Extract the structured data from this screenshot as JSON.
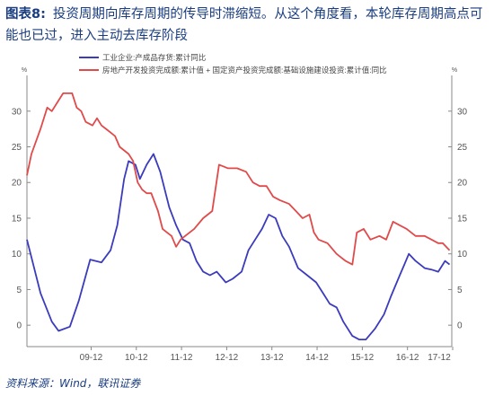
{
  "figure": {
    "label": "图表8:",
    "title": "投资周期向库存周期的传导时滞缩短。从这个角度看，本轮库存周期高点可能也已过，进入主动去库存阶段",
    "source": "资料来源：Wind，联讯证券"
  },
  "chart_data": {
    "type": "line",
    "left_unit": "%",
    "right_unit": "%",
    "ylim": [
      -3,
      34
    ],
    "y_ticks": [
      0,
      5,
      10,
      15,
      20,
      25,
      30
    ],
    "x_range": [
      2008.5,
      2017.9
    ],
    "x_ticks": [
      {
        "label": "09-12",
        "x": 2009.92
      },
      {
        "label": "10-12",
        "x": 2010.92
      },
      {
        "label": "11-12",
        "x": 2011.92
      },
      {
        "label": "12-12",
        "x": 2012.92
      },
      {
        "label": "13-12",
        "x": 2013.92
      },
      {
        "label": "14-12",
        "x": 2014.92
      },
      {
        "label": "15-12",
        "x": 2015.92
      },
      {
        "label": "16-12",
        "x": 2016.92
      },
      {
        "label": "17-12",
        "x": 2017.92
      }
    ],
    "legend": "top-left",
    "series": [
      {
        "name": "工业企业:产成品存货:累计同比",
        "color": "#3b3bbd",
        "points": [
          [
            2008.5,
            12.0
          ],
          [
            2008.8,
            4.5
          ],
          [
            2009.05,
            0.5
          ],
          [
            2009.2,
            -0.8
          ],
          [
            2009.45,
            -0.2
          ],
          [
            2009.65,
            3.5
          ],
          [
            2009.9,
            9.2
          ],
          [
            2010.15,
            8.8
          ],
          [
            2010.35,
            10.5
          ],
          [
            2010.5,
            14.0
          ],
          [
            2010.65,
            20.5
          ],
          [
            2010.75,
            23.0
          ],
          [
            2010.9,
            22.5
          ],
          [
            2011.0,
            20.5
          ],
          [
            2011.15,
            22.5
          ],
          [
            2011.3,
            24.0
          ],
          [
            2011.45,
            21.5
          ],
          [
            2011.65,
            16.5
          ],
          [
            2011.8,
            14.0
          ],
          [
            2011.95,
            12.0
          ],
          [
            2012.1,
            11.5
          ],
          [
            2012.25,
            9.0
          ],
          [
            2012.4,
            7.5
          ],
          [
            2012.55,
            7.0
          ],
          [
            2012.7,
            7.5
          ],
          [
            2012.9,
            6.0
          ],
          [
            2013.05,
            6.5
          ],
          [
            2013.25,
            7.5
          ],
          [
            2013.4,
            10.5
          ],
          [
            2013.55,
            12.0
          ],
          [
            2013.7,
            13.5
          ],
          [
            2013.85,
            15.5
          ],
          [
            2014.0,
            15.0
          ],
          [
            2014.15,
            12.5
          ],
          [
            2014.3,
            11.0
          ],
          [
            2014.5,
            8.0
          ],
          [
            2014.7,
            7.0
          ],
          [
            2014.9,
            6.0
          ],
          [
            2015.05,
            4.5
          ],
          [
            2015.2,
            3.0
          ],
          [
            2015.35,
            2.5
          ],
          [
            2015.5,
            0.5
          ],
          [
            2015.7,
            -1.5
          ],
          [
            2015.85,
            -2.0
          ],
          [
            2016.0,
            -2.0
          ],
          [
            2016.2,
            -0.5
          ],
          [
            2016.4,
            1.5
          ],
          [
            2016.55,
            4.0
          ],
          [
            2016.75,
            7.0
          ],
          [
            2016.85,
            8.5
          ],
          [
            2016.95,
            10.0
          ],
          [
            2017.1,
            9.0
          ],
          [
            2017.3,
            8.0
          ],
          [
            2017.45,
            7.8
          ],
          [
            2017.6,
            7.5
          ],
          [
            2017.75,
            9.0
          ],
          [
            2017.85,
            8.5
          ]
        ]
      },
      {
        "name": "房地产开发投资完成额:累计值 + 国定资产投资完成额:基础设施建设投资:累计值:同比",
        "color": "#e04a4a",
        "points": [
          [
            2008.5,
            21.0
          ],
          [
            2008.6,
            24.0
          ],
          [
            2008.8,
            27.5
          ],
          [
            2008.95,
            30.5
          ],
          [
            2009.05,
            30.0
          ],
          [
            2009.2,
            31.5
          ],
          [
            2009.3,
            32.5
          ],
          [
            2009.5,
            32.5
          ],
          [
            2009.6,
            30.5
          ],
          [
            2009.7,
            30.0
          ],
          [
            2009.8,
            28.5
          ],
          [
            2009.95,
            28.0
          ],
          [
            2010.05,
            29.0
          ],
          [
            2010.15,
            28.0
          ],
          [
            2010.25,
            27.5
          ],
          [
            2010.35,
            27.0
          ],
          [
            2010.45,
            26.5
          ],
          [
            2010.55,
            25.0
          ],
          [
            2010.65,
            24.5
          ],
          [
            2010.75,
            24.0
          ],
          [
            2010.85,
            23.0
          ],
          [
            2010.95,
            20.0
          ],
          [
            2011.05,
            19.0
          ],
          [
            2011.15,
            18.5
          ],
          [
            2011.25,
            18.5
          ],
          [
            2011.4,
            16.0
          ],
          [
            2011.5,
            13.5
          ],
          [
            2011.6,
            13.0
          ],
          [
            2011.7,
            12.5
          ],
          [
            2011.8,
            11.0
          ],
          [
            2011.9,
            12.0
          ],
          [
            2012.0,
            12.5
          ],
          [
            2012.2,
            13.5
          ],
          [
            2012.4,
            15.0
          ],
          [
            2012.6,
            16.0
          ],
          [
            2012.75,
            22.5
          ],
          [
            2012.95,
            22.0
          ],
          [
            2013.15,
            22.0
          ],
          [
            2013.35,
            21.5
          ],
          [
            2013.5,
            20.0
          ],
          [
            2013.65,
            19.5
          ],
          [
            2013.8,
            19.5
          ],
          [
            2013.95,
            18.0
          ],
          [
            2014.1,
            17.5
          ],
          [
            2014.3,
            17.0
          ],
          [
            2014.45,
            16.0
          ],
          [
            2014.6,
            15.0
          ],
          [
            2014.75,
            15.5
          ],
          [
            2014.85,
            13.0
          ],
          [
            2014.95,
            12.0
          ],
          [
            2015.15,
            11.5
          ],
          [
            2015.35,
            10.0
          ],
          [
            2015.55,
            9.0
          ],
          [
            2015.7,
            8.5
          ],
          [
            2015.8,
            13.0
          ],
          [
            2015.95,
            13.5
          ],
          [
            2016.1,
            12.0
          ],
          [
            2016.3,
            12.5
          ],
          [
            2016.45,
            12.0
          ],
          [
            2016.6,
            14.5
          ],
          [
            2016.75,
            14.0
          ],
          [
            2016.9,
            13.5
          ],
          [
            2017.1,
            12.5
          ],
          [
            2017.3,
            12.5
          ],
          [
            2017.45,
            12.0
          ],
          [
            2017.6,
            11.5
          ],
          [
            2017.7,
            11.5
          ],
          [
            2017.85,
            10.5
          ]
        ]
      }
    ]
  }
}
